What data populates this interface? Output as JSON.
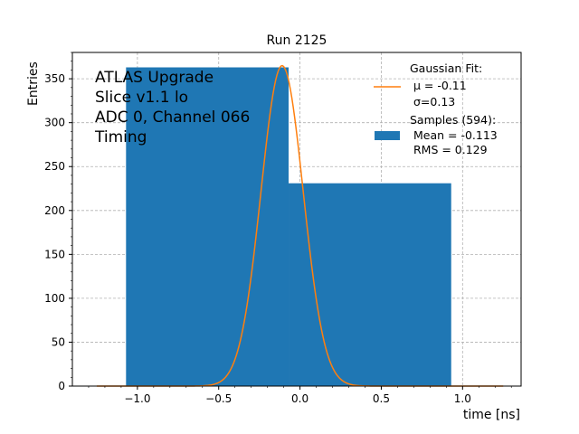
{
  "chart_data": {
    "type": "bar",
    "title": "Run 2125",
    "xlabel": "time [ns]",
    "ylabel": "Entries",
    "xlim": [
      -1.4,
      1.36
    ],
    "ylim": [
      0,
      380
    ],
    "x_ticks": [
      -1.0,
      -0.5,
      0.0,
      0.5,
      1.0
    ],
    "x_tick_labels": [
      "−1.0",
      "−0.5",
      "0.0",
      "0.5",
      "1.0"
    ],
    "y_ticks": [
      0,
      50,
      100,
      150,
      200,
      250,
      300,
      350
    ],
    "y_tick_labels": [
      "0",
      "50",
      "100",
      "150",
      "200",
      "250",
      "300",
      "350"
    ],
    "grid": true,
    "series": [
      {
        "name": "Samples (594):",
        "kind": "histogram",
        "color": "#1f77b4",
        "bins": [
          {
            "x0": -1.07,
            "x1": -0.07,
            "value": 363
          },
          {
            "x0": -0.07,
            "x1": 0.93,
            "value": 231
          }
        ]
      },
      {
        "name": "Gaussian Fit:",
        "kind": "gaussian",
        "color": "#ff7f0e",
        "mu": -0.11,
        "sigma": 0.13,
        "amplitude": 365,
        "x_range": [
          -1.25,
          1.25
        ]
      }
    ],
    "annotation_lines": [
      "ATLAS Upgrade",
      "Slice v1.1 lo",
      "ADC 0, Channel 066",
      "Timing"
    ],
    "legend": {
      "position": "top-right",
      "entries": [
        {
          "lines": [
            "Gaussian Fit:",
            "μ = -0.11",
            "σ=0.13"
          ],
          "marker": "line",
          "color": "#ff7f0e"
        },
        {
          "lines": [
            "Samples (594):",
            " Mean = -0.113",
            " RMS = 0.129"
          ],
          "marker": "patch",
          "color": "#1f77b4"
        }
      ]
    }
  }
}
